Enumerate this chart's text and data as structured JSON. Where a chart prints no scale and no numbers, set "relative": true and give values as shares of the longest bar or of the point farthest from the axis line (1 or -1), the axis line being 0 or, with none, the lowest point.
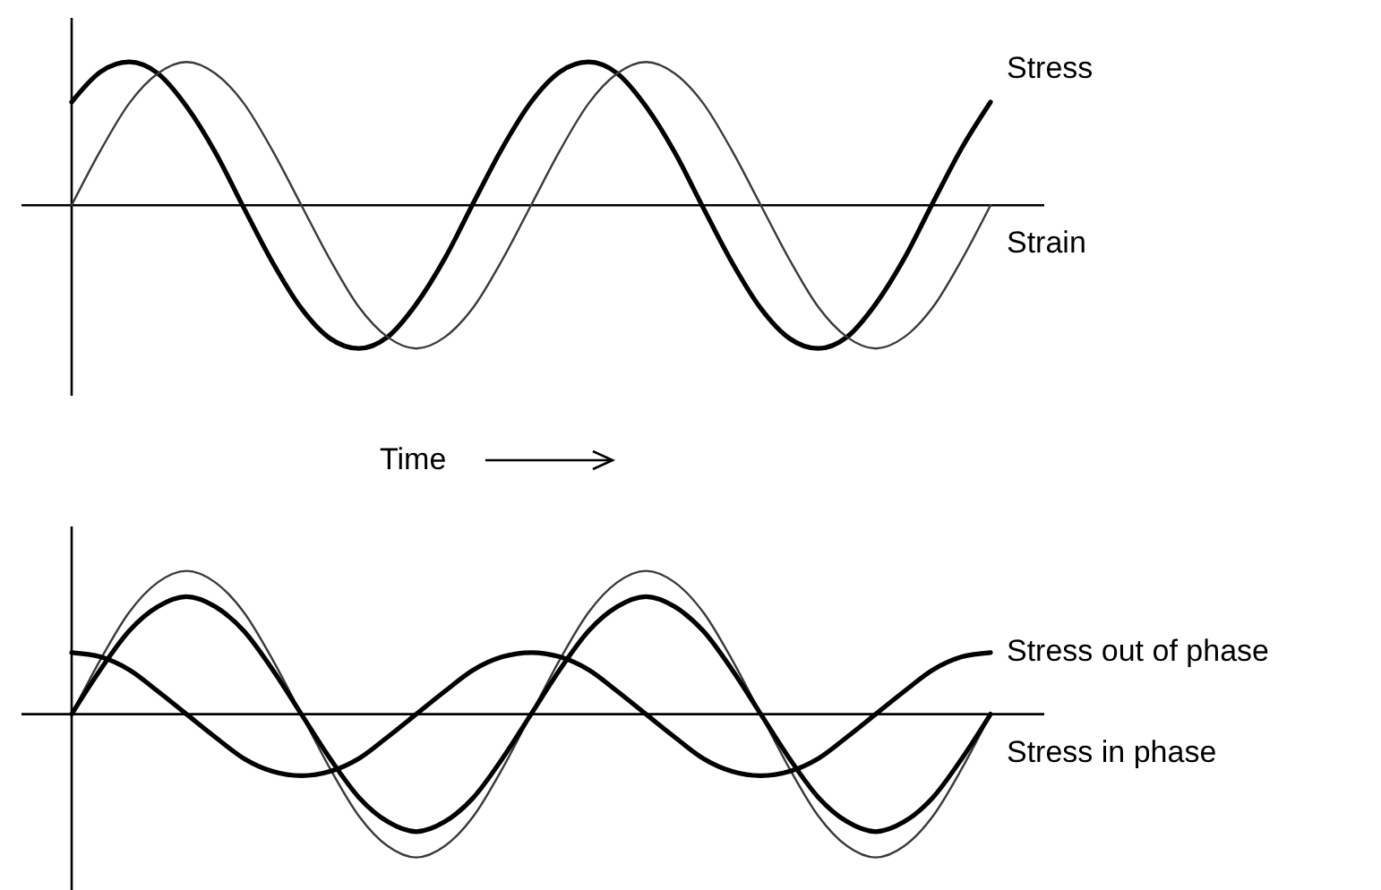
{
  "chart_data": [
    {
      "type": "line",
      "relative": true,
      "xlabel": "Time",
      "categories": [
        null,
        null,
        null,
        null,
        null,
        null,
        null,
        null,
        null,
        null,
        null,
        null,
        null,
        null,
        null,
        null,
        null,
        null,
        null,
        null,
        null,
        null,
        null,
        null,
        null,
        null,
        null,
        null,
        null,
        null,
        null,
        null,
        null
      ],
      "series": [
        {
          "name": "Stress",
          "color": "#000000",
          "values": [
            0.72,
            0.93,
            1.0,
            0.92,
            0.69,
            0.37,
            -0.02,
            -0.4,
            -0.72,
            -0.93,
            -1.0,
            -0.92,
            -0.69,
            -0.37,
            0.02,
            0.4,
            0.72,
            0.93,
            1.0,
            0.92,
            0.69,
            0.37,
            -0.02,
            -0.4,
            -0.72,
            -0.93,
            -1.0,
            -0.92,
            -0.69,
            -0.37,
            0.02,
            0.4,
            0.72
          ]
        },
        {
          "name": "Strain",
          "color": "#3a3a3a",
          "values": [
            0,
            0.38,
            0.71,
            0.92,
            1,
            0.92,
            0.71,
            0.38,
            0,
            -0.38,
            -0.71,
            -0.92,
            -1,
            -0.92,
            -0.71,
            -0.38,
            0,
            0.38,
            0.71,
            0.92,
            1,
            0.92,
            0.71,
            0.38,
            0,
            -0.38,
            -0.71,
            -0.92,
            -1,
            -0.92,
            -0.71,
            -0.38,
            0
          ]
        }
      ]
    },
    {
      "type": "line",
      "relative": true,
      "categories": [
        null,
        null,
        null,
        null,
        null,
        null,
        null,
        null,
        null,
        null,
        null,
        null,
        null,
        null,
        null,
        null,
        null,
        null,
        null,
        null,
        null,
        null,
        null,
        null,
        null,
        null,
        null,
        null,
        null,
        null,
        null,
        null,
        null
      ],
      "series": [
        {
          "color": "#3a3a3a",
          "values": [
            0,
            0.38,
            0.71,
            0.92,
            1,
            0.92,
            0.71,
            0.38,
            0,
            -0.38,
            -0.71,
            -0.92,
            -1,
            -0.92,
            -0.71,
            -0.38,
            0,
            0.38,
            0.71,
            0.92,
            1,
            0.92,
            0.71,
            0.38,
            0,
            -0.38,
            -0.71,
            -0.92,
            -1,
            -0.92,
            -0.71,
            -0.38,
            0
          ]
        },
        {
          "name": "Stress out of phase",
          "color": "#000000",
          "values": [
            0.43,
            0.4,
            0.31,
            0.16,
            0,
            -0.16,
            -0.31,
            -0.4,
            -0.43,
            -0.4,
            -0.31,
            -0.16,
            0,
            0.16,
            0.31,
            0.4,
            0.43,
            0.4,
            0.31,
            0.16,
            0,
            -0.16,
            -0.31,
            -0.4,
            -0.43,
            -0.4,
            -0.31,
            -0.16,
            0,
            0.16,
            0.31,
            0.4,
            0.43
          ]
        },
        {
          "name": "Stress in phase",
          "color": "#000000",
          "values": [
            0,
            0.31,
            0.58,
            0.75,
            0.82,
            0.75,
            0.58,
            0.31,
            0,
            -0.31,
            -0.58,
            -0.75,
            -0.82,
            -0.75,
            -0.58,
            -0.31,
            0,
            0.31,
            0.58,
            0.75,
            0.82,
            0.75,
            0.58,
            0.31,
            0,
            -0.31,
            -0.58,
            -0.75,
            -0.82,
            -0.75,
            -0.58,
            -0.31,
            0
          ]
        }
      ]
    }
  ]
}
